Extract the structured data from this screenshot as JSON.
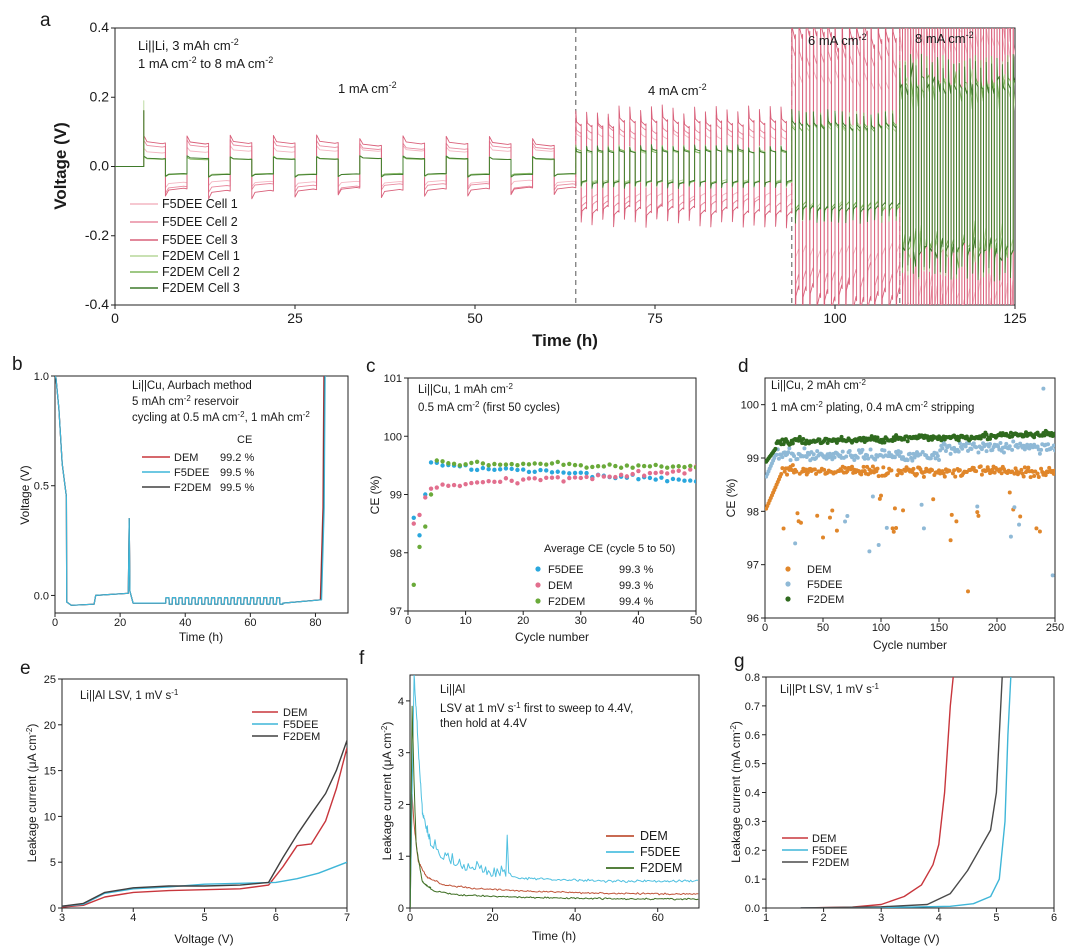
{
  "chart_data": [
    {
      "id": "a",
      "type": "line",
      "panel_label": "a",
      "title": "",
      "xlabel": "Time (h)",
      "ylabel": "Voltage (V)",
      "xlim": [
        0,
        125
      ],
      "ylim": [
        -0.4,
        0.4
      ],
      "xticks": [
        "0",
        "25",
        "50",
        "75",
        "100",
        "125"
      ],
      "yticks": [
        "-0.4",
        "-0.2",
        "0.0",
        "0.2",
        "0.4"
      ],
      "annotations": [
        {
          "text": "Li||Li, 3 mAh cm",
          "sup": "-2"
        },
        {
          "text": "1 mA cm",
          "sup": "-2",
          "text2": " to 8 mA cm",
          "sup2": "-2"
        },
        {
          "text": "1 mA cm",
          "sup": "-2"
        },
        {
          "text": "4 mA cm",
          "sup": "-2"
        },
        {
          "text": "6 mA cm",
          "sup": "-2"
        },
        {
          "text": "8 mA cm",
          "sup": "-2"
        }
      ],
      "segments": [
        {
          "current": "1 mA cm-2",
          "start_h": 4,
          "end_h": 64,
          "cycle_h": 6,
          "polarization_v": [
            0.05,
            0.025
          ]
        },
        {
          "current": "4 mA cm-2",
          "start_h": 64,
          "end_h": 94,
          "cycle_h": 1.5,
          "polarization_v": [
            0.095,
            0.05
          ]
        },
        {
          "current": "6 mA cm-2",
          "start_h": 94,
          "end_h": 109,
          "cycle_h": 1.0,
          "polarization_v": [
            0.28,
            0.13
          ]
        },
        {
          "current": "8 mA cm-2",
          "start_h": 109,
          "end_h": 125,
          "cycle_h": 0.75,
          "polarization_v": [
            0.4,
            0.26
          ]
        }
      ],
      "nucleation_spike_v": 0.19,
      "separators_h": [
        64,
        94,
        109
      ],
      "legend": [
        "F5DEE Cell 1",
        "F5DEE Cell 2",
        "F5DEE Cell 3",
        "F2DEM Cell 1",
        "F2DEM Cell 2",
        "F2DEM Cell 3"
      ],
      "series_colors": [
        "#f4b6c2",
        "#e98ba0",
        "#d9607a",
        "#b7d79a",
        "#7fb55c",
        "#3f7a2b"
      ]
    },
    {
      "id": "b",
      "type": "line",
      "panel_label": "b",
      "xlabel": "Time (h)",
      "ylabel": "Voltage (V)",
      "xlim": [
        0,
        90
      ],
      "ylim": [
        -0.08,
        1.0
      ],
      "xticks": [
        "0",
        "20",
        "40",
        "60",
        "80"
      ],
      "yticks": [
        "0.0",
        "0.5",
        "1.0"
      ],
      "annotations": [
        {
          "text": "Li||Cu, Aurbach method"
        },
        {
          "text": "5 mAh cm",
          "sup": "-2",
          "text2": " reservoir"
        },
        {
          "text": "cycling at 0.5 mA cm",
          "sup": "-2",
          "text2": ", 1 mAh cm",
          "sup2": "-2"
        }
      ],
      "legend_header": "CE",
      "legend": [
        {
          "name": "DEM",
          "ce": "99.2 %",
          "color": "#c8363c"
        },
        {
          "name": "F5DEE",
          "ce": "99.5 %",
          "color": "#3fb6d8"
        },
        {
          "name": "F2DEM",
          "ce": "99.5 %",
          "color": "#404040"
        }
      ]
    },
    {
      "id": "c",
      "type": "scatter",
      "panel_label": "c",
      "xlabel": "Cycle number",
      "ylabel": "CE (%)",
      "xlim": [
        0,
        50
      ],
      "ylim": [
        97,
        101
      ],
      "xticks": [
        "0",
        "10",
        "20",
        "30",
        "40",
        "50"
      ],
      "yticks": [
        "97",
        "98",
        "99",
        "100",
        "101"
      ],
      "annotations": [
        {
          "text": "Li||Cu, 1 mAh cm",
          "sup": "-2"
        },
        {
          "text": "0.5 mA cm",
          "sup": "-2",
          "text2": " (first 50 cycles)"
        }
      ],
      "legend_header": "Average CE (cycle 5 to 50)",
      "series": [
        {
          "name": "F5DEE",
          "avg": "99.3 %",
          "color": "#2aa7dd",
          "early": [
            [
              1,
              98.6
            ],
            [
              2,
              98.3
            ],
            [
              3,
              99.0
            ],
            [
              4,
              99.55
            ]
          ],
          "late_mean": 99.3
        },
        {
          "name": "DEM",
          "avg": "99.3 %",
          "color": "#e26f8e",
          "early": [
            [
              1,
              98.5
            ],
            [
              2,
              98.65
            ],
            [
              3,
              98.95
            ],
            [
              4,
              99.1
            ]
          ],
          "late_mean": 99.28
        },
        {
          "name": "F2DEM",
          "avg": "99.4 %",
          "color": "#6aaa3a",
          "early": [
            [
              1,
              97.45
            ],
            [
              2,
              98.1
            ],
            [
              3,
              98.45
            ],
            [
              4,
              99.0
            ]
          ],
          "late_mean": 99.45
        }
      ]
    },
    {
      "id": "d",
      "type": "scatter",
      "panel_label": "d",
      "xlabel": "Cycle number",
      "ylabel": "CE (%)",
      "xlim": [
        0,
        250
      ],
      "ylim": [
        96,
        100.5
      ],
      "xticks": [
        "0",
        "50",
        "100",
        "150",
        "200",
        "250"
      ],
      "yticks": [
        "96",
        "97",
        "98",
        "99",
        "100"
      ],
      "annotations": [
        {
          "text": "Li||Cu, 2 mAh cm",
          "sup": "-2"
        },
        {
          "text": "1 mA cm",
          "sup": "-2",
          "text2": " plating, 0.4 mA cm",
          "sup2": "-2",
          "text3": " stripping"
        }
      ],
      "series": [
        {
          "name": "DEM",
          "color": "#e0862a",
          "mean": 98.75
        },
        {
          "name": "F5DEE",
          "color": "#8fb9d6",
          "mean": 99.05
        },
        {
          "name": "F2DEM",
          "color": "#2f6a1e",
          "mean": 99.3
        }
      ]
    },
    {
      "id": "e",
      "type": "line",
      "panel_label": "e",
      "xlabel": "Voltage (V)",
      "ylabel": "Leakage current (μA cm",
      "ylabel_sup": "-2",
      "ylabel_end": ")",
      "xlim": [
        3,
        7
      ],
      "ylim": [
        0,
        25
      ],
      "xticks": [
        "3",
        "4",
        "5",
        "6",
        "7"
      ],
      "yticks": [
        "0",
        "5",
        "10",
        "15",
        "20",
        "25"
      ],
      "annotations": [
        {
          "text": "Li||Al LSV, 1 mV s",
          "sup": "-1"
        }
      ],
      "series": [
        {
          "name": "DEM",
          "color": "#c8363c",
          "points": [
            [
              3,
              0.1
            ],
            [
              3.3,
              0.3
            ],
            [
              3.6,
              1.2
            ],
            [
              4,
              1.7
            ],
            [
              4.5,
              1.9
            ],
            [
              5,
              2.0
            ],
            [
              5.5,
              2.1
            ],
            [
              5.9,
              2.5
            ],
            [
              6.1,
              4.5
            ],
            [
              6.3,
              6.8
            ],
            [
              6.5,
              7.0
            ],
            [
              6.7,
              9.5
            ],
            [
              6.85,
              13.0
            ],
            [
              7,
              17.5
            ]
          ]
        },
        {
          "name": "F5DEE",
          "color": "#3fb6d8",
          "points": [
            [
              3,
              0.2
            ],
            [
              3.3,
              0.4
            ],
            [
              3.6,
              1.6
            ],
            [
              4,
              2.1
            ],
            [
              4.5,
              2.3
            ],
            [
              5,
              2.6
            ],
            [
              5.5,
              2.7
            ],
            [
              6,
              2.8
            ],
            [
              6.3,
              3.2
            ],
            [
              6.6,
              3.8
            ],
            [
              7,
              5.0
            ]
          ]
        },
        {
          "name": "F2DEM",
          "color": "#404040",
          "points": [
            [
              3,
              0.2
            ],
            [
              3.3,
              0.5
            ],
            [
              3.6,
              1.7
            ],
            [
              4,
              2.2
            ],
            [
              4.5,
              2.4
            ],
            [
              5,
              2.4
            ],
            [
              5.5,
              2.5
            ],
            [
              5.9,
              2.8
            ],
            [
              6.1,
              5.5
            ],
            [
              6.3,
              8.0
            ],
            [
              6.5,
              10.3
            ],
            [
              6.7,
              12.5
            ],
            [
              6.85,
              15.0
            ],
            [
              7,
              18.3
            ]
          ]
        }
      ]
    },
    {
      "id": "f",
      "type": "line",
      "panel_label": "f",
      "xlabel": "Time (h)",
      "ylabel": "Leakage current (μA cm",
      "ylabel_sup": "-2",
      "ylabel_end": ")",
      "xlim": [
        0,
        70
      ],
      "ylim": [
        0,
        4.5
      ],
      "xticks": [
        "0",
        "20",
        "40",
        "60"
      ],
      "yticks": [
        "0",
        "1",
        "2",
        "3",
        "4"
      ],
      "annotations": [
        {
          "text": "Li||Al"
        },
        {
          "text": "LSV at 1 mV s",
          "sup": "-1",
          "text2": " first to sweep to 4.4V,"
        },
        {
          "text": "then hold at 4.4V"
        }
      ],
      "series": [
        {
          "name": "DEM",
          "color": "#c0553a",
          "points": [
            [
              0.5,
              2.2
            ],
            [
              1,
              1.6
            ],
            [
              2,
              0.9
            ],
            [
              4,
              0.6
            ],
            [
              8,
              0.45
            ],
            [
              15,
              0.38
            ],
            [
              30,
              0.32
            ],
            [
              50,
              0.28
            ],
            [
              70,
              0.27
            ]
          ]
        },
        {
          "name": "F5DEE",
          "color": "#4fc0e0",
          "points": [
            [
              1,
              4.4
            ],
            [
              2,
              3.0
            ],
            [
              3,
              1.8
            ],
            [
              5,
              1.2
            ],
            [
              8,
              0.9
            ],
            [
              12,
              0.75
            ],
            [
              20,
              0.6
            ],
            [
              35,
              0.55
            ],
            [
              50,
              0.52
            ],
            [
              70,
              0.52
            ]
          ]
        },
        {
          "name": "F2DEM",
          "color": "#3d6e22",
          "points": [
            [
              0.5,
              3.9
            ],
            [
              1,
              2.4
            ],
            [
              1.5,
              1.2
            ],
            [
              3,
              0.5
            ],
            [
              6,
              0.32
            ],
            [
              12,
              0.25
            ],
            [
              30,
              0.2
            ],
            [
              50,
              0.18
            ],
            [
              70,
              0.17
            ]
          ]
        }
      ]
    },
    {
      "id": "g",
      "type": "line",
      "panel_label": "g",
      "xlabel": "Voltage (V)",
      "ylabel": "Leakage current (mA cm",
      "ylabel_sup": "-2",
      "ylabel_end": ")",
      "xlim": [
        1,
        6
      ],
      "ylim": [
        0,
        0.8
      ],
      "xticks": [
        "1",
        "2",
        "3",
        "4",
        "5",
        "6"
      ],
      "yticks": [
        "0.0",
        "0.1",
        "0.2",
        "0.3",
        "0.4",
        "0.5",
        "0.6",
        "0.7",
        "0.8"
      ],
      "annotations": [
        {
          "text": "Li||Pt LSV, 1 mV s",
          "sup": "-1"
        }
      ],
      "series": [
        {
          "name": "DEM",
          "color": "#c8363c",
          "points": [
            [
              1.6,
              0.0
            ],
            [
              2.5,
              0.003
            ],
            [
              3.0,
              0.012
            ],
            [
              3.4,
              0.04
            ],
            [
              3.7,
              0.08
            ],
            [
              3.9,
              0.15
            ],
            [
              4.0,
              0.22
            ],
            [
              4.1,
              0.4
            ],
            [
              4.2,
              0.7
            ],
            [
              4.25,
              0.8
            ]
          ]
        },
        {
          "name": "F5DEE",
          "color": "#3fb6d8",
          "points": [
            [
              1.6,
              0.0
            ],
            [
              3.5,
              0.003
            ],
            [
              4.2,
              0.006
            ],
            [
              4.6,
              0.015
            ],
            [
              4.9,
              0.04
            ],
            [
              5.05,
              0.1
            ],
            [
              5.15,
              0.3
            ],
            [
              5.2,
              0.6
            ],
            [
              5.25,
              0.8
            ]
          ]
        },
        {
          "name": "F2DEM",
          "color": "#4a4a4a",
          "points": [
            [
              1.6,
              0.0
            ],
            [
              3.0,
              0.004
            ],
            [
              3.8,
              0.012
            ],
            [
              4.2,
              0.05
            ],
            [
              4.5,
              0.13
            ],
            [
              4.7,
              0.2
            ],
            [
              4.9,
              0.27
            ],
            [
              5.0,
              0.4
            ],
            [
              5.05,
              0.6
            ],
            [
              5.1,
              0.8
            ]
          ]
        }
      ]
    }
  ]
}
